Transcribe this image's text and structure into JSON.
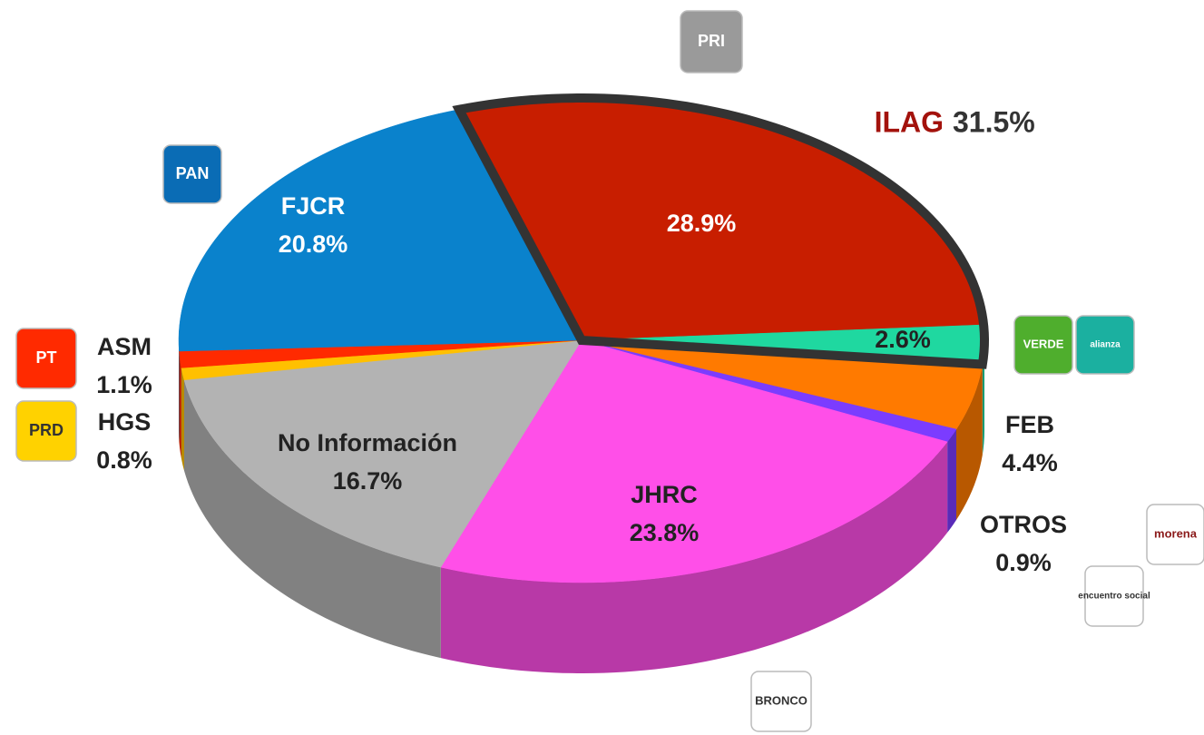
{
  "chart_data": {
    "type": "pie",
    "categories": [
      null,
      null,
      "FEB",
      "OTROS",
      "JHRC",
      "No Información",
      "HGS",
      "ASM",
      "FJCR"
    ],
    "values": [
      28.9,
      2.6,
      4.4,
      0.9,
      23.8,
      16.7,
      0.8,
      1.1,
      20.8
    ],
    "value_labels": [
      "28.9%",
      "2.6%",
      "4.4%",
      "0.9%",
      "23.8%",
      "16.7%",
      "0.8%",
      "1.1%",
      "20.8%"
    ],
    "colors": [
      "#c81e00",
      "#1fd8a0",
      "#ff7a00",
      "#7b3cff",
      "#ff4fe8",
      "#b3b3b3",
      "#ffc000",
      "#ff2a00",
      "#0a82cc"
    ],
    "annotation": {
      "label": "ILAG",
      "value": 31.5,
      "value_label": "31.5%"
    },
    "logos": [
      {
        "text": "PRI",
        "color": "#9a9a9a"
      },
      {
        "text": "PAN",
        "color": "#0a6cb5"
      },
      {
        "text": "PT",
        "color": "#ff2a00"
      },
      {
        "text": "PRD",
        "color": "#ffd200"
      },
      {
        "text": "VERDE",
        "color": "#4fae2d"
      },
      {
        "text": "alianza",
        "color": "#1bb0a0"
      },
      {
        "text": "morena",
        "color": "#ffffff"
      },
      {
        "text": "encuentro social",
        "color": "#ffffff"
      },
      {
        "text": "BRONCO",
        "color": "#ffffff"
      }
    ]
  }
}
